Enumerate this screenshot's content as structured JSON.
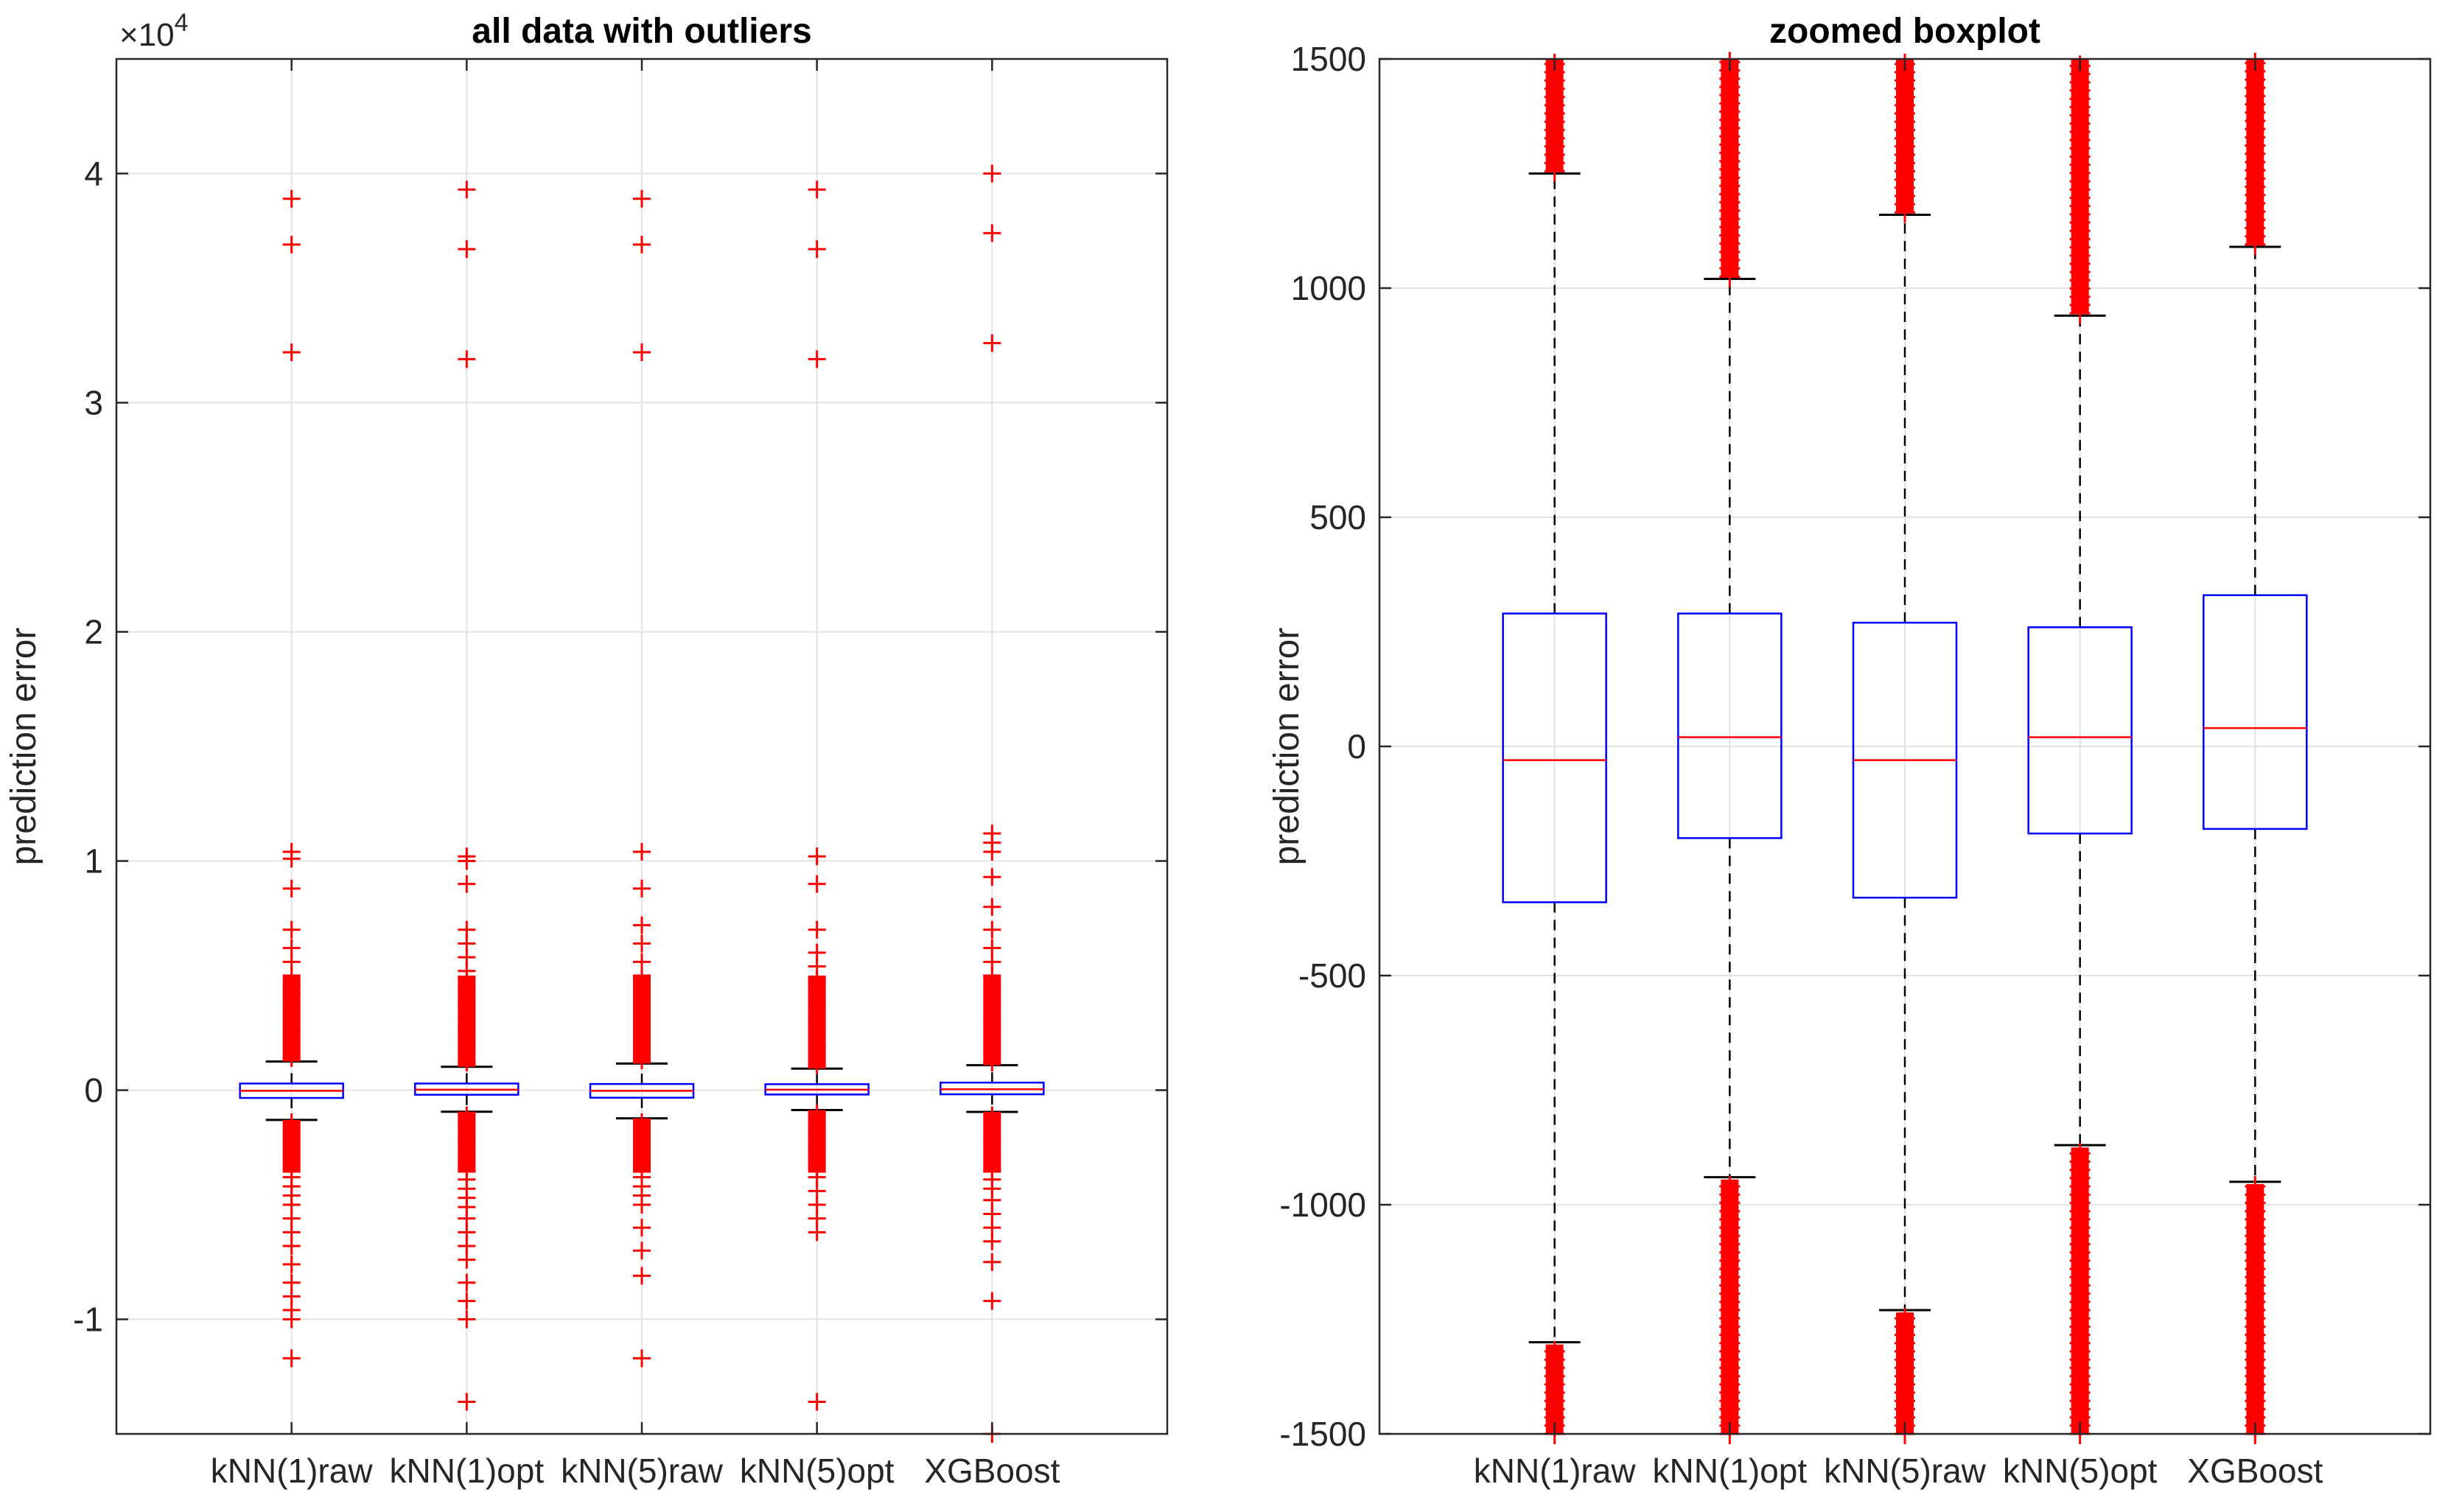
{
  "colors": {
    "box": "#0000ff",
    "median": "#ff0000",
    "outlier": "#ff0000",
    "whisker": "#000000",
    "grid": "#e3e3e3",
    "axis": "#262626"
  },
  "chart_data": [
    {
      "type": "boxplot",
      "title": "all data with outliers",
      "xlabel": "",
      "ylabel": "prediction error",
      "ylim": [
        -15000,
        45000
      ],
      "y_ticks": [
        -10000,
        0,
        10000,
        20000,
        30000,
        40000
      ],
      "y_tick_labels": [
        "-1",
        "0",
        "1",
        "2",
        "3",
        "4"
      ],
      "exponent_label": {
        "base": "×10",
        "power": "4"
      },
      "grid": true,
      "categories": [
        "kNN(1)raw",
        "kNN(1)opt",
        "kNN(5)raw",
        "kNN(5)opt",
        "XGBoost"
      ],
      "boxes": [
        {
          "name": "kNN(1)raw",
          "whisker_low": -1300,
          "q1": -340,
          "median": -30,
          "q3": 290,
          "whisker_high": 1250,
          "outliers_high": [
            1400,
            1800,
            2200,
            2600,
            3000,
            3400,
            3800,
            4200,
            4600,
            5000,
            5600,
            6200,
            7000,
            8800,
            10100,
            10400,
            32200,
            36900,
            38900
          ],
          "outliers_low": [
            -1400,
            -1800,
            -2200,
            -2600,
            -3000,
            -3400,
            -3800,
            -4200,
            -4600,
            -5000,
            -5600,
            -6200,
            -6800,
            -7600,
            -8400,
            -9000,
            -9600,
            -10000,
            -11700
          ]
        },
        {
          "name": "kNN(1)opt",
          "whisker_low": -940,
          "q1": -200,
          "median": 20,
          "q3": 290,
          "whisker_high": 1020,
          "outliers_high": [
            1200,
            1600,
            2000,
            2400,
            2800,
            3200,
            3600,
            4000,
            4400,
            4800,
            5200,
            5800,
            6400,
            7000,
            9000,
            10000,
            10200,
            31900,
            36700,
            39300
          ],
          "outliers_low": [
            -1100,
            -1500,
            -1900,
            -2300,
            -2700,
            -3100,
            -3500,
            -3900,
            -4300,
            -4700,
            -5100,
            -5600,
            -6200,
            -6800,
            -7400,
            -8400,
            -9200,
            -10000,
            -13600
          ]
        },
        {
          "name": "kNN(5)raw",
          "whisker_low": -1230,
          "q1": -330,
          "median": -30,
          "q3": 270,
          "whisker_high": 1160,
          "outliers_high": [
            1300,
            1700,
            2100,
            2500,
            2900,
            3300,
            3700,
            4100,
            4500,
            5000,
            5600,
            6400,
            7200,
            8800,
            10400,
            32200,
            36900,
            38900
          ],
          "outliers_low": [
            -1400,
            -1800,
            -2200,
            -2600,
            -3000,
            -3400,
            -3800,
            -4200,
            -4600,
            -5000,
            -6000,
            -7000,
            -8100,
            -11700
          ]
        },
        {
          "name": "kNN(5)opt",
          "whisker_low": -870,
          "q1": -190,
          "median": 20,
          "q3": 260,
          "whisker_high": 940,
          "outliers_high": [
            1100,
            1500,
            1900,
            2300,
            2700,
            3100,
            3500,
            3900,
            4300,
            4800,
            5400,
            6000,
            7000,
            9000,
            10200,
            31900,
            36700,
            39300
          ],
          "outliers_low": [
            -1000,
            -1400,
            -1800,
            -2200,
            -2600,
            -3000,
            -3400,
            -3800,
            -4400,
            -5000,
            -5600,
            -6200,
            -13600
          ]
        },
        {
          "name": "XGBoost",
          "whisker_low": -950,
          "q1": -180,
          "median": 40,
          "q3": 330,
          "whisker_high": 1090,
          "outliers_high": [
            1200,
            1600,
            2000,
            2400,
            2800,
            3200,
            3600,
            4000,
            4500,
            5000,
            5600,
            6200,
            7000,
            8000,
            9300,
            10400,
            10800,
            11200,
            32600,
            37400,
            40000
          ],
          "outliers_low": [
            -1100,
            -1500,
            -1900,
            -2300,
            -2700,
            -3100,
            -3500,
            -3900,
            -4300,
            -4800,
            -5400,
            -6000,
            -6600,
            -7500,
            -9200,
            -15000
          ]
        }
      ]
    },
    {
      "type": "boxplot",
      "title": "zoomed boxplot",
      "xlabel": "",
      "ylabel": "prediction error",
      "ylim": [
        -1500,
        1500
      ],
      "y_ticks": [
        -1500,
        -1000,
        -500,
        0,
        500,
        1000,
        1500
      ],
      "y_tick_labels": [
        "-1500",
        "-1000",
        "-500",
        "0",
        "500",
        "1000",
        "1500"
      ],
      "grid": true,
      "categories": [
        "kNN(1)raw",
        "kNN(1)opt",
        "kNN(5)raw",
        "kNN(5)opt",
        "XGBoost"
      ],
      "boxes": [
        {
          "name": "kNN(1)raw",
          "whisker_low": -1300,
          "q1": -340,
          "median": -30,
          "q3": 290,
          "whisker_high": 1250,
          "outliers_high_range": [
            1255,
            1500
          ],
          "outliers_low_range": [
            -1500,
            -1305
          ]
        },
        {
          "name": "kNN(1)opt",
          "whisker_low": -940,
          "q1": -200,
          "median": 20,
          "q3": 290,
          "whisker_high": 1020,
          "outliers_high_range": [
            1025,
            1500
          ],
          "outliers_low_range": [
            -1500,
            -945
          ]
        },
        {
          "name": "kNN(5)raw",
          "whisker_low": -1230,
          "q1": -330,
          "median": -30,
          "q3": 270,
          "whisker_high": 1160,
          "outliers_high_range": [
            1165,
            1500
          ],
          "outliers_low_range": [
            -1500,
            -1235
          ]
        },
        {
          "name": "kNN(5)opt",
          "whisker_low": -870,
          "q1": -190,
          "median": 20,
          "q3": 260,
          "whisker_high": 940,
          "outliers_high_range": [
            945,
            1500
          ],
          "outliers_low_range": [
            -1500,
            -875
          ]
        },
        {
          "name": "XGBoost",
          "whisker_low": -950,
          "q1": -180,
          "median": 40,
          "q3": 330,
          "whisker_high": 1090,
          "outliers_high_range": [
            1095,
            1500
          ],
          "outliers_low_range": [
            -1500,
            -955
          ]
        }
      ]
    }
  ]
}
